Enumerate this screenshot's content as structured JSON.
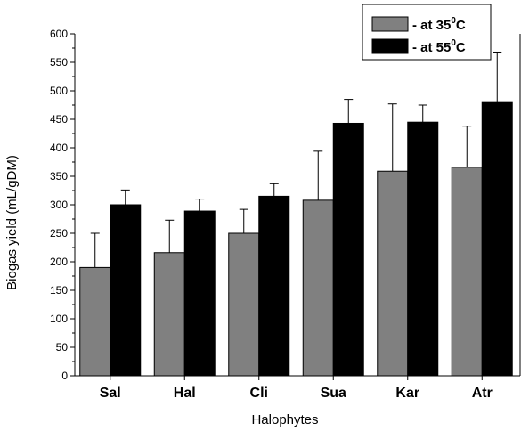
{
  "chart_data": {
    "type": "bar",
    "title": "",
    "xlabel": "Halophytes",
    "ylabel": "Biogas yield (mL/gDM)",
    "ylim": [
      0,
      600
    ],
    "yticks": [
      0,
      50,
      100,
      150,
      200,
      250,
      300,
      350,
      400,
      450,
      500,
      550,
      600
    ],
    "categories": [
      "Sal",
      "Hal",
      "Cli",
      "Sua",
      "Kar",
      "Atr"
    ],
    "grid": false,
    "legend_position": "top-right",
    "series": [
      {
        "legend_prefix": "- at 35",
        "legend_sup": "0",
        "legend_suffix": "C",
        "color": "#808080",
        "values": [
          190,
          216,
          250,
          308,
          359,
          366
        ],
        "errors": [
          60,
          57,
          42,
          86,
          118,
          72
        ]
      },
      {
        "legend_prefix": "- at 55",
        "legend_sup": "0",
        "legend_suffix": "C",
        "color": "#000000",
        "values": [
          300,
          289,
          315,
          443,
          445,
          481
        ],
        "errors": [
          26,
          21,
          22,
          42,
          30,
          87
        ]
      }
    ]
  }
}
